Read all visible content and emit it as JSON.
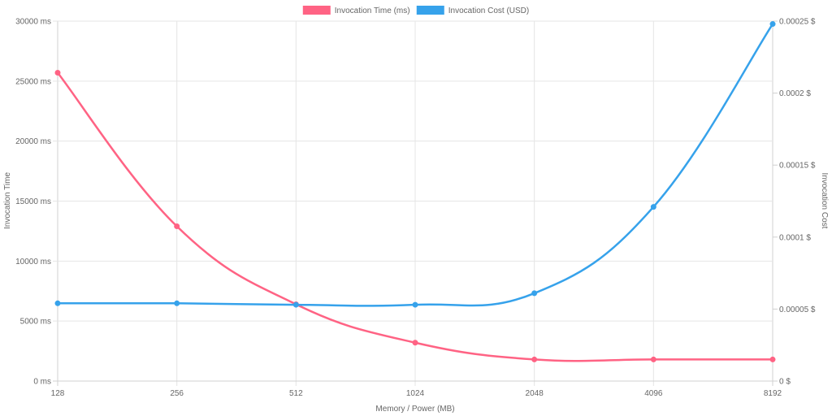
{
  "chart_data": {
    "type": "line",
    "categories": [
      "128",
      "256",
      "512",
      "1024",
      "2048",
      "4096",
      "8192"
    ],
    "xlabel": "Memory / Power (MB)",
    "ylabel_left": "Invocation Time",
    "ylabel_right": "Invocation Cost",
    "legend_position": "top-center",
    "grid": true,
    "y_left": {
      "min": 0,
      "max": 30000,
      "ticks": [
        0,
        5000,
        10000,
        15000,
        20000,
        25000,
        30000
      ],
      "tick_labels": [
        "0 ms",
        "5000 ms",
        "10000 ms",
        "15000 ms",
        "20000 ms",
        "25000 ms",
        "30000 ms"
      ]
    },
    "y_right": {
      "min": 0,
      "max": 0.00025,
      "ticks": [
        0,
        5e-05,
        0.0001,
        0.00015,
        0.0002,
        0.00025
      ],
      "tick_labels": [
        "0 $",
        "0.00005 $",
        "0.0001 $",
        "0.00015 $",
        "0.0002 $",
        "0.00025 $"
      ]
    },
    "series": [
      {
        "name": "Invocation Time (ms)",
        "axis": "left",
        "color": "#ff6384",
        "values": [
          25700,
          12900,
          6400,
          3200,
          1800,
          1800,
          1800
        ]
      },
      {
        "name": "Invocation Cost (USD)",
        "axis": "right",
        "color": "#36a2eb",
        "values": [
          5.4e-05,
          5.4e-05,
          5.3e-05,
          5.3e-05,
          6.1e-05,
          0.000121,
          0.000248
        ]
      }
    ]
  }
}
